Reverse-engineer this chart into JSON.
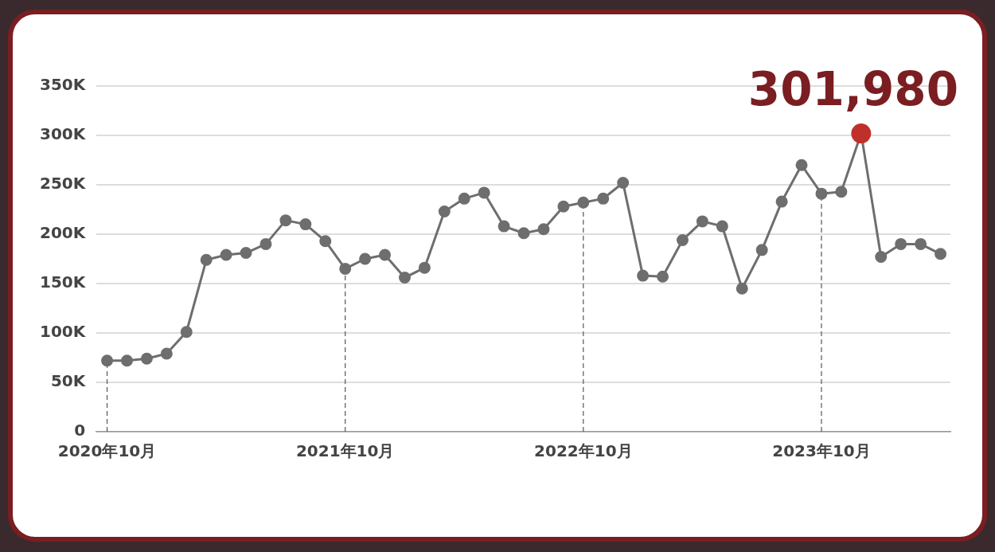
{
  "chart_data": {
    "type": "line",
    "x": [
      "2020-10",
      "2020-11",
      "2020-12",
      "2021-01",
      "2021-02",
      "2021-03",
      "2021-04",
      "2021-05",
      "2021-06",
      "2021-07",
      "2021-08",
      "2021-09",
      "2021-10",
      "2021-11",
      "2021-12",
      "2022-01",
      "2022-02",
      "2022-03",
      "2022-04",
      "2022-05",
      "2022-06",
      "2022-07",
      "2022-08",
      "2022-09",
      "2022-10",
      "2022-11",
      "2022-12",
      "2023-01",
      "2023-02",
      "2023-03",
      "2023-04",
      "2023-05",
      "2023-06",
      "2023-07",
      "2023-08",
      "2023-09",
      "2023-10",
      "2023-11",
      "2023-12",
      "2024-01",
      "2024-02",
      "2024-03",
      "2024-04"
    ],
    "series": [
      {
        "color": "#6e6e6e",
        "values": [
          72000,
          72000,
          74000,
          79000,
          101000,
          174000,
          179000,
          181000,
          190000,
          214000,
          210000,
          193000,
          165000,
          175000,
          179000,
          156000,
          166000,
          223000,
          236000,
          242000,
          208000,
          201000,
          205000,
          228000,
          232000,
          236000,
          252000,
          158000,
          157000,
          194000,
          213000,
          208000,
          145000,
          184000,
          233000,
          270000,
          241000,
          243000,
          301980,
          177000,
          190000,
          190000,
          180000
        ],
        "colors": [
          "#6e6e6e",
          "#6e6e6e",
          "#6e6e6e",
          "#6e6e6e",
          "#6e6e6e",
          "#6e6e6e",
          "#6e6e6e",
          "#6e6e6e",
          "#6e6e6e",
          "#6e6e6e",
          "#6e6e6e",
          "#6e6e6e",
          "#6e6e6e",
          "#6e6e6e",
          "#6e6e6e",
          "#6e6e6e",
          "#6e6e6e",
          "#6e6e6e",
          "#6e6e6e",
          "#6e6e6e",
          "#6e6e6e",
          "#6e6e6e",
          "#6e6e6e",
          "#6e6e6e",
          "#6e6e6e",
          "#6e6e6e",
          "#6e6e6e",
          "#6e6e6e",
          "#6e6e6e",
          "#6e6e6e",
          "#6e6e6e",
          "#6e6e6e",
          "#6e6e6e",
          "#6e6e6e",
          "#6e6e6e",
          "#6e6e6e",
          "#6e6e6e",
          "#6e6e6e",
          "#c0302a",
          "#6e6e6e",
          "#6e6e6e",
          "#6e6e6e",
          "#6e6e6e"
        ]
      }
    ],
    "xlim": [
      "2020-09-15",
      "2024-04-16"
    ],
    "xticks": [
      {
        "value": "2020-10",
        "label": "2020年10月"
      },
      {
        "value": "2021-10",
        "label": "2021年10月"
      },
      {
        "value": "2022-10",
        "label": "2022年10月"
      },
      {
        "value": "2023-10",
        "label": "2023年10月"
      }
    ],
    "ylim": [
      0,
      350000
    ],
    "yticks": [
      {
        "value": 0,
        "label": "0"
      },
      {
        "value": 50000,
        "label": "50K"
      },
      {
        "value": 100000,
        "label": "100K"
      },
      {
        "value": 150000,
        "label": "150K"
      },
      {
        "value": 200000,
        "label": "200K"
      },
      {
        "value": 250000,
        "label": "250K"
      },
      {
        "value": 300000,
        "label": "300K"
      },
      {
        "value": 350000,
        "label": "350K"
      }
    ],
    "ref_lines": [
      {
        "axis": "x",
        "value": "2020-10",
        "line_style": "dashed",
        "color": "#555555"
      },
      {
        "axis": "x",
        "value": "2021-10",
        "line_style": "dashed",
        "color": "#555555"
      },
      {
        "axis": "x",
        "value": "2022-10",
        "line_style": "dashed",
        "color": "#555555"
      },
      {
        "axis": "x",
        "value": "2023-10",
        "line_style": "dashed",
        "color": "#555555"
      }
    ],
    "annotations": [
      {
        "text": "301,980",
        "x": "2023-12",
        "y": 301980
      }
    ],
    "grid": "y",
    "legend": false,
    "marker": "circle",
    "line_style": "solid"
  }
}
